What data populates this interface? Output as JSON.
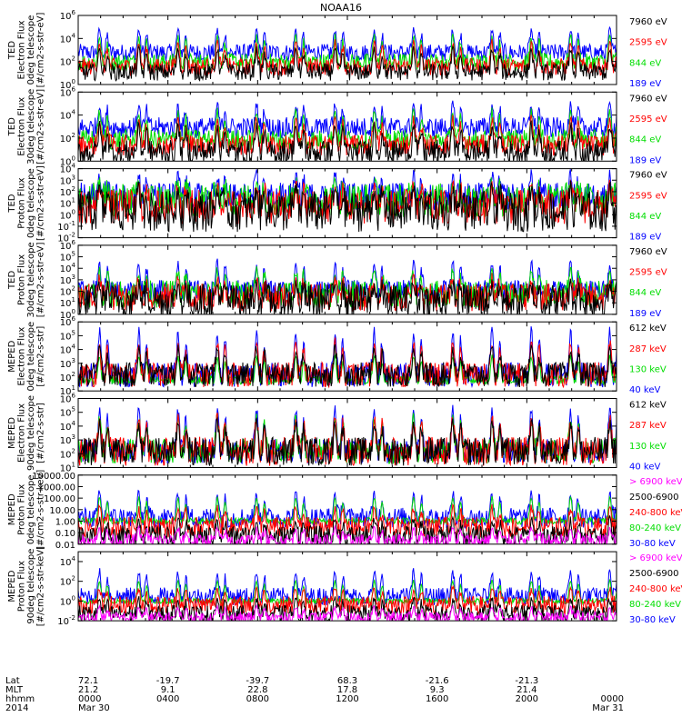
{
  "chart_data": {
    "type": "line",
    "title": "NOAA16",
    "footer": {
      "rows": [
        {
          "label": "Lat",
          "values": [
            "72.1",
            "-19.7",
            "-39.7",
            "68.3",
            "-21.6",
            "-21.3",
            ""
          ]
        },
        {
          "label": "MLT",
          "values": [
            "21.2",
            "9.1",
            "22.8",
            "17.8",
            "9.3",
            "21.4",
            ""
          ]
        },
        {
          "label": "hhmm",
          "values": [
            "0000",
            "0400",
            "0800",
            "1200",
            "1600",
            "2000",
            "0000"
          ]
        },
        {
          "label": "2014",
          "values": [
            "Mar 30",
            "",
            "",
            "",
            "",
            "",
            "Mar 31"
          ]
        }
      ]
    },
    "x_range_hours": [
      0,
      24
    ],
    "panels": [
      {
        "ylabel": [
          "TED",
          "Electron Flux",
          "0deg telescope",
          "[#/cm2-s-str-eV]"
        ],
        "yscale": "log",
        "ylim": [
          1,
          1000000
        ],
        "yticks": [
          {
            "label": "10",
            "exp": "6",
            "v": 1000000
          },
          {
            "label": "10",
            "exp": "4",
            "v": 10000
          },
          {
            "label": "10",
            "exp": "2",
            "v": 100
          },
          {
            "label": "10",
            "exp": "0",
            "v": 1
          }
        ],
        "series": [
          {
            "name": "7960 eV",
            "color": "#000000",
            "base": 12,
            "peak": 2000,
            "noise": 0.25
          },
          {
            "name": "2595 eV",
            "color": "#ff0000",
            "base": 35,
            "peak": 8000,
            "noise": 0.25
          },
          {
            "name": "844 eV",
            "color": "#00dd00",
            "base": 90,
            "peak": 30000,
            "noise": 0.25
          },
          {
            "name": "189 eV",
            "color": "#0000ff",
            "base": 600,
            "peak": 100000,
            "noise": 0.25
          }
        ]
      },
      {
        "ylabel": [
          "TED",
          "Electron Flux",
          "30deg telescope",
          "[#/cm2-s-str-eV]"
        ],
        "yscale": "log",
        "ylim": [
          1,
          1000000
        ],
        "yticks": [
          {
            "label": "10",
            "exp": "6",
            "v": 1000000
          },
          {
            "label": "10",
            "exp": "4",
            "v": 10000
          },
          {
            "label": "10",
            "exp": "2",
            "v": 100
          },
          {
            "label": "10",
            "exp": "0",
            "v": 1
          }
        ],
        "series": [
          {
            "name": "7960 eV",
            "color": "#000000",
            "base": 6,
            "peak": 2500,
            "noise": 0.35
          },
          {
            "name": "2595 eV",
            "color": "#ff0000",
            "base": 25,
            "peak": 9000,
            "noise": 0.3
          },
          {
            "name": "844 eV",
            "color": "#00dd00",
            "base": 70,
            "peak": 40000,
            "noise": 0.3
          },
          {
            "name": "189 eV",
            "color": "#0000ff",
            "base": 800,
            "peak": 150000,
            "noise": 0.3
          }
        ]
      },
      {
        "ylabel": [
          "TED",
          "Proton Flux",
          "0deg telescope",
          "[#/cm2-s-str-eV]"
        ],
        "yscale": "log",
        "ylim": [
          0.01,
          10000
        ],
        "yticks": [
          {
            "label": "10",
            "exp": "4",
            "v": 10000
          },
          {
            "label": "10",
            "exp": "3",
            "v": 1000
          },
          {
            "label": "10",
            "exp": "2",
            "v": 100
          },
          {
            "label": "10",
            "exp": "1",
            "v": 10
          },
          {
            "label": "10",
            "exp": "0",
            "v": 1
          },
          {
            "label": "10",
            "exp": "-1",
            "v": 0.1
          },
          {
            "label": "10",
            "exp": "-2",
            "v": 0.01
          }
        ],
        "series": [
          {
            "name": "7960 eV",
            "color": "#000000",
            "base": 2,
            "peak": 300,
            "noise": 0.6
          },
          {
            "name": "2595 eV",
            "color": "#ff0000",
            "base": 5,
            "peak": 500,
            "noise": 0.5
          },
          {
            "name": "844 eV",
            "color": "#00dd00",
            "base": 20,
            "peak": 800,
            "noise": 0.5
          },
          {
            "name": "189 eV",
            "color": "#0000ff",
            "base": 40,
            "peak": 5000,
            "noise": 0.4
          }
        ]
      },
      {
        "ylabel": [
          "TED",
          "Proton Flux",
          "30deg telescope",
          "[#/cm2-s-str-eV]"
        ],
        "yscale": "log",
        "ylim": [
          1,
          1000000
        ],
        "yticks": [
          {
            "label": "10",
            "exp": "6",
            "v": 1000000
          },
          {
            "label": "10",
            "exp": "5",
            "v": 100000
          },
          {
            "label": "10",
            "exp": "4",
            "v": 10000
          },
          {
            "label": "10",
            "exp": "3",
            "v": 1000
          },
          {
            "label": "10",
            "exp": "2",
            "v": 100
          },
          {
            "label": "10",
            "exp": "1",
            "v": 10
          },
          {
            "label": "10",
            "exp": "0",
            "v": 1
          }
        ],
        "series": [
          {
            "name": "7960 eV",
            "color": "#000000",
            "base": 15,
            "peak": 500,
            "noise": 0.5
          },
          {
            "name": "2595 eV",
            "color": "#ff0000",
            "base": 30,
            "peak": 2000,
            "noise": 0.4
          },
          {
            "name": "844 eV",
            "color": "#00dd00",
            "base": 60,
            "peak": 10000,
            "noise": 0.4
          },
          {
            "name": "189 eV",
            "color": "#0000ff",
            "base": 120,
            "peak": 60000,
            "noise": 0.3
          }
        ]
      },
      {
        "ylabel": [
          "MEPED",
          "Electron Flux",
          "0deg telescope",
          "[#/cm2-s-str]"
        ],
        "yscale": "log",
        "ylim": [
          10,
          1000000
        ],
        "yticks": [
          {
            "label": "10",
            "exp": "6",
            "v": 1000000
          },
          {
            "label": "10",
            "exp": "5",
            "v": 100000
          },
          {
            "label": "10",
            "exp": "4",
            "v": 10000
          },
          {
            "label": "10",
            "exp": "3",
            "v": 1000
          },
          {
            "label": "10",
            "exp": "2",
            "v": 100
          },
          {
            "label": "10",
            "exp": "1",
            "v": 10
          }
        ],
        "series": [
          {
            "name": "612 keV",
            "color": "#000000",
            "base": 150,
            "peak": 20000,
            "noise": 0.3
          },
          {
            "name": "287 keV",
            "color": "#ff0000",
            "base": 150,
            "peak": 60000,
            "noise": 0.3
          },
          {
            "name": "130 keV",
            "color": "#00dd00",
            "base": 60,
            "peak": 5000,
            "noise": 0.1
          },
          {
            "name": "40 keV",
            "color": "#0000ff",
            "base": 150,
            "peak": 500000,
            "noise": 0.3
          }
        ]
      },
      {
        "ylabel": [
          "MEPED",
          "Electron Flux",
          "90deg telescope",
          "[#/cm2-s-str]"
        ],
        "yscale": "log",
        "ylim": [
          10,
          1000000
        ],
        "yticks": [
          {
            "label": "10",
            "exp": "6",
            "v": 1000000
          },
          {
            "label": "10",
            "exp": "5",
            "v": 100000
          },
          {
            "label": "10",
            "exp": "4",
            "v": 10000
          },
          {
            "label": "10",
            "exp": "3",
            "v": 1000
          },
          {
            "label": "10",
            "exp": "2",
            "v": 100
          },
          {
            "label": "10",
            "exp": "1",
            "v": 10
          }
        ],
        "series": [
          {
            "name": "612 keV",
            "color": "#000000",
            "base": 150,
            "peak": 30000,
            "noise": 0.35
          },
          {
            "name": "287 keV",
            "color": "#ff0000",
            "base": 150,
            "peak": 80000,
            "noise": 0.35
          },
          {
            "name": "130 keV",
            "color": "#00dd00",
            "base": 150,
            "peak": 80000,
            "noise": 0.3
          },
          {
            "name": "40 keV",
            "color": "#0000ff",
            "base": 150,
            "peak": 400000,
            "noise": 0.3
          }
        ]
      },
      {
        "ylabel": [
          "MEPED",
          "Proton Flux",
          "0deg telescope",
          "[#/cm2-s-str-keV]"
        ],
        "yscale": "log",
        "ylim": [
          0.01,
          10000
        ],
        "yticks": [
          {
            "label": "10000.00",
            "v": 10000
          },
          {
            "label": "1000.00",
            "v": 1000
          },
          {
            "label": "100.00",
            "v": 100
          },
          {
            "label": "10.00",
            "v": 10
          },
          {
            "label": "1.00",
            "v": 1
          },
          {
            "label": "0.10",
            "v": 0.1
          },
          {
            "label": "0.01",
            "v": 0.01
          }
        ],
        "series": [
          {
            "name": "> 6900 keV",
            "color": "#ff00ff",
            "base": 0.02,
            "peak": 0.3,
            "noise": 0.2
          },
          {
            "name": "2500-6900",
            "color": "#000000",
            "base": 0.05,
            "peak": 2,
            "noise": 0.3
          },
          {
            "name": "240-800 keV",
            "color": "#ff0000",
            "base": 0.3,
            "peak": 20,
            "noise": 0.3
          },
          {
            "name": "80-240 keV",
            "color": "#00dd00",
            "base": 1,
            "peak": 200,
            "noise": 0.1
          },
          {
            "name": "30-80 keV",
            "color": "#0000ff",
            "base": 2,
            "peak": 500,
            "noise": 0.3
          }
        ]
      },
      {
        "ylabel": [
          "MEPED",
          "Proton Flux",
          "90deg telescope",
          "[#/cm2-s-str-keV]"
        ],
        "yscale": "log",
        "ylim": [
          0.01,
          100000
        ],
        "yticks": [
          {
            "label": "10",
            "exp": "4",
            "v": 10000
          },
          {
            "label": "10",
            "exp": "2",
            "v": 100
          },
          {
            "label": "10",
            "exp": "0",
            "v": 1
          },
          {
            "label": "10",
            "exp": "-2",
            "v": 0.01
          }
        ],
        "series": [
          {
            "name": "> 6900 keV",
            "color": "#ff00ff",
            "base": 0.02,
            "peak": 0.3,
            "noise": 0.2
          },
          {
            "name": "2500-6900",
            "color": "#000000",
            "base": 0.05,
            "peak": 2,
            "noise": 0.3
          },
          {
            "name": "240-800 keV",
            "color": "#ff0000",
            "base": 0.4,
            "peak": 30,
            "noise": 0.3
          },
          {
            "name": "80-240 keV",
            "color": "#00dd00",
            "base": 1,
            "peak": 200,
            "noise": 0.1
          },
          {
            "name": "30-80 keV",
            "color": "#0000ff",
            "base": 3,
            "peak": 2000,
            "noise": 0.3
          }
        ]
      }
    ],
    "pass_centers_hours": [
      0.95,
      2.7,
      4.45,
      6.2,
      7.95,
      9.7,
      11.45,
      13.2,
      14.95,
      16.7,
      18.45,
      20.2,
      21.95,
      23.7
    ]
  }
}
